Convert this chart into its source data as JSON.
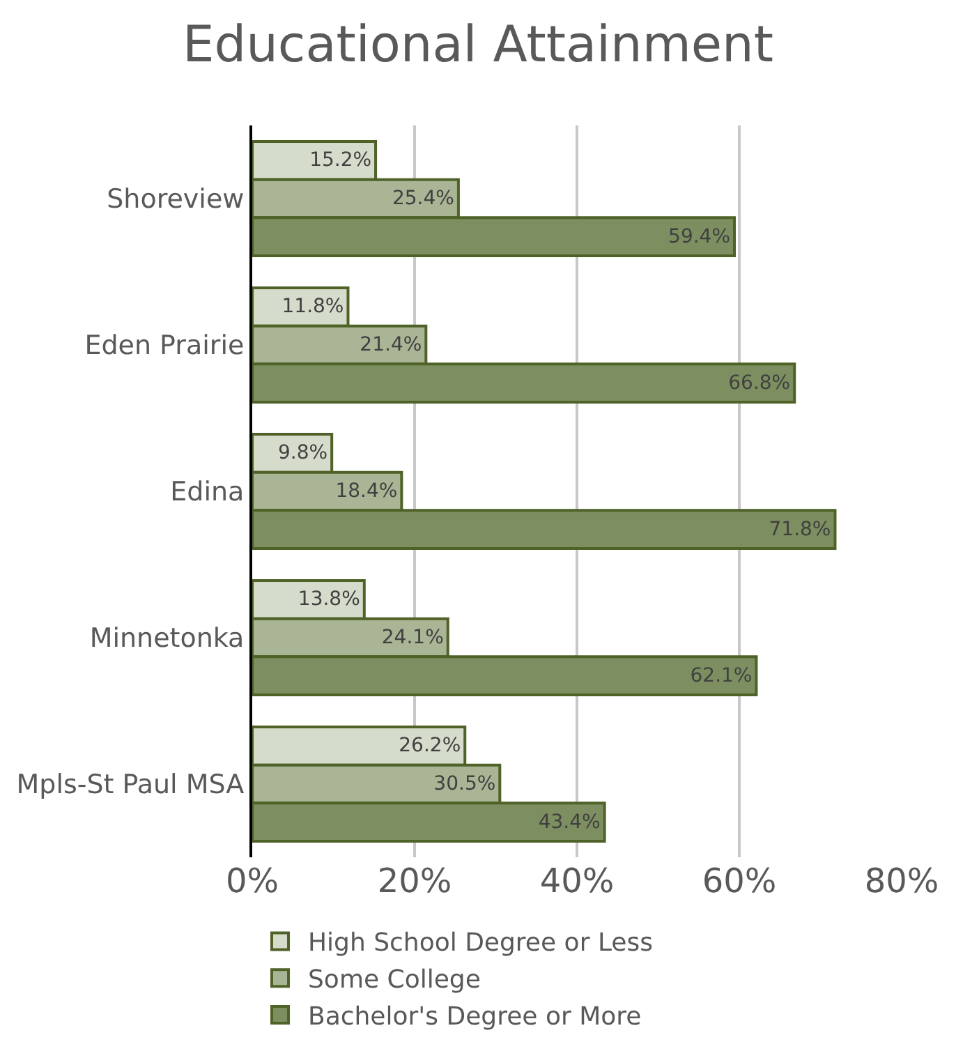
{
  "chart_data": {
    "type": "bar",
    "orientation": "horizontal",
    "title": "Educational Attainment",
    "categories": [
      "Shoreview",
      "Eden Prairie",
      "Edina",
      "Minnetonka",
      "Mpls-St Paul MSA"
    ],
    "series": [
      {
        "name": "High School Degree or Less",
        "color": "#d6dccb",
        "values": [
          15.2,
          11.8,
          9.8,
          13.8,
          26.2
        ],
        "value_labels": [
          "15.2%",
          "11.8%",
          "9.8%",
          "13.8%",
          "26.2%"
        ]
      },
      {
        "name": "Some College",
        "color": "#aab595",
        "values": [
          25.4,
          21.4,
          18.4,
          24.1,
          30.5
        ],
        "value_labels": [
          "25.4%",
          "21.4%",
          "18.4%",
          "24.1%",
          "30.5%"
        ]
      },
      {
        "name": "Bachelor's Degree or More",
        "color": "#7d8f60",
        "values": [
          59.4,
          66.8,
          71.8,
          62.1,
          43.4
        ],
        "value_labels": [
          "59.4%",
          "66.8%",
          "71.8%",
          "62.1%",
          "43.4%"
        ]
      }
    ],
    "xlim": [
      0,
      80
    ],
    "xticks": [
      {
        "value": 0,
        "label": "0%"
      },
      {
        "value": 20,
        "label": "20%"
      },
      {
        "value": 40,
        "label": "40%"
      },
      {
        "value": 60,
        "label": "60%"
      },
      {
        "value": 80,
        "label": "80%"
      }
    ],
    "grid": "x",
    "legend": "bottom"
  }
}
